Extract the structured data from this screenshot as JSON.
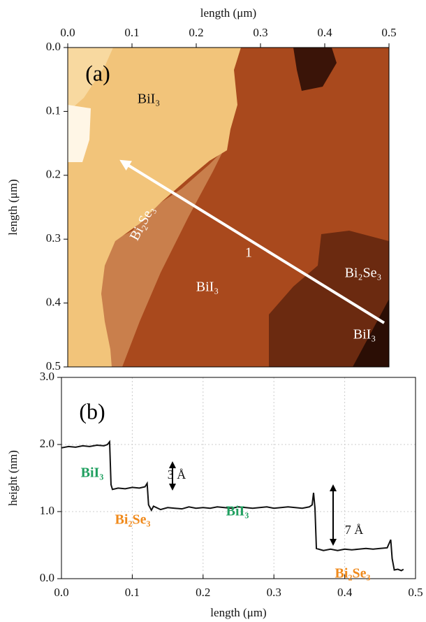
{
  "chart_data": [
    {
      "type": "image",
      "x_label": "length (μm)",
      "y_label": "length (μm)",
      "x_axis": "top",
      "y_inverted": true,
      "xlim": [
        0,
        0.5
      ],
      "ylim": [
        0,
        0.5
      ],
      "xticks": [
        {
          "value": 0,
          "label": "0.0"
        },
        0.1,
        0.2,
        0.3,
        0.4,
        0.5
      ],
      "yticks": [
        {
          "value": 0,
          "label": "0.0"
        },
        0.1,
        0.2,
        0.3,
        0.4,
        0.5
      ],
      "annotations": [
        {
          "text": "(a)",
          "color": "#000000"
        },
        {
          "text": "BiI₃",
          "color": "#111111"
        },
        {
          "text": "Bi₂Se₃",
          "color": "#ffffff"
        },
        {
          "text": "1",
          "color": "#ffffff"
        },
        {
          "text": "BiI₃",
          "color": "#ffffff"
        },
        {
          "text": "Bi₂Se₃",
          "color": "#ffffff"
        },
        {
          "text": "BiI₃",
          "color": "#ffffff"
        }
      ]
    },
    {
      "type": "line",
      "x_label": "length (μm)",
      "y_label": "height (nm)",
      "color": "#111111",
      "grid": true,
      "xlim": [
        0,
        0.5
      ],
      "ylim": [
        0,
        3
      ],
      "xticks": [
        {
          "value": 0,
          "label": "0.0"
        },
        0.1,
        0.2,
        0.3,
        0.4,
        0.5
      ],
      "yticks": [
        {
          "value": 0,
          "label": "0.0"
        },
        {
          "value": 1,
          "label": "1.0"
        },
        {
          "value": 2,
          "label": "2.0"
        },
        {
          "value": 3,
          "label": "3.0"
        }
      ],
      "x": [
        0,
        0.01,
        0.02,
        0.03,
        0.04,
        0.05,
        0.06,
        0.065,
        0.068,
        0.07,
        0.072,
        0.08,
        0.09,
        0.1,
        0.11,
        0.118,
        0.121,
        0.123,
        0.127,
        0.13,
        0.14,
        0.15,
        0.16,
        0.17,
        0.18,
        0.19,
        0.2,
        0.21,
        0.22,
        0.23,
        0.24,
        0.25,
        0.26,
        0.27,
        0.28,
        0.29,
        0.3,
        0.31,
        0.32,
        0.33,
        0.34,
        0.35,
        0.354,
        0.356,
        0.358,
        0.36,
        0.37,
        0.38,
        0.39,
        0.4,
        0.41,
        0.42,
        0.43,
        0.44,
        0.45,
        0.46,
        0.465,
        0.467,
        0.47,
        0.475,
        0.48,
        0.483
      ],
      "values": [
        1.95,
        1.97,
        1.96,
        1.98,
        1.97,
        1.99,
        1.98,
        2.0,
        2.04,
        1.4,
        1.33,
        1.35,
        1.34,
        1.36,
        1.35,
        1.37,
        1.42,
        1.1,
        1.02,
        1.08,
        1.03,
        1.06,
        1.05,
        1.04,
        1.07,
        1.05,
        1.06,
        1.05,
        1.07,
        1.06,
        1.05,
        1.07,
        1.06,
        1.05,
        1.06,
        1.07,
        1.05,
        1.06,
        1.07,
        1.06,
        1.05,
        1.07,
        1.1,
        1.28,
        1.05,
        0.45,
        0.42,
        0.44,
        0.42,
        0.44,
        0.43,
        0.44,
        0.45,
        0.44,
        0.45,
        0.46,
        0.58,
        0.3,
        0.13,
        0.14,
        0.12,
        0.14
      ],
      "annotations": [
        {
          "text": "(b)",
          "color": "#000000"
        },
        {
          "text": "BiI₃",
          "color": "#20a060"
        },
        {
          "text": "Bi₂Se₃",
          "color": "#f08a1c"
        },
        {
          "text": "3 Å",
          "color": "#111111"
        },
        {
          "text": "BiI₃",
          "color": "#20a060"
        },
        {
          "text": "7 Å",
          "color": "#111111"
        },
        {
          "text": "Bi₂Se₃",
          "color": "#f08a1c"
        }
      ]
    }
  ]
}
